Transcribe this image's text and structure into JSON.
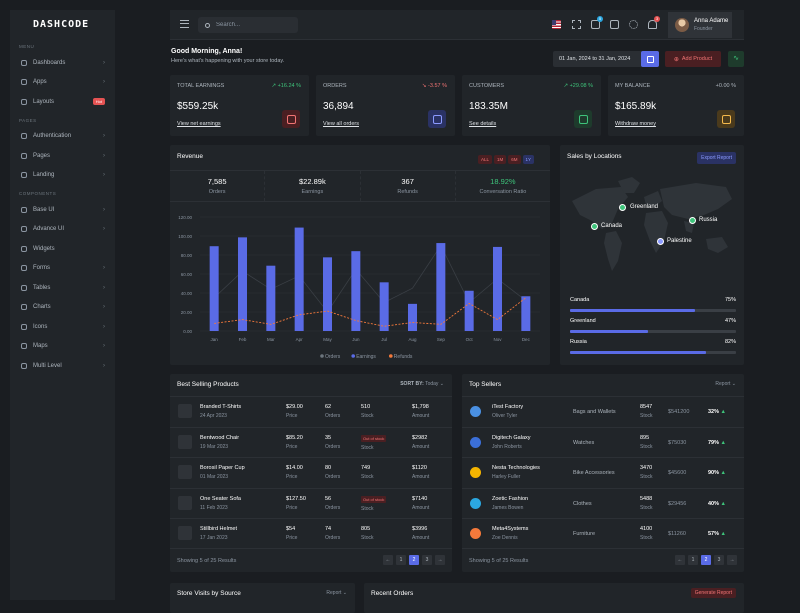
{
  "brand": "DASHCODE",
  "search": {
    "placeholder": "Search..."
  },
  "user": {
    "name": "Anna Adame",
    "role": "Founder"
  },
  "notif_counts": {
    "cart": "5",
    "bell": "3"
  },
  "sidebar": {
    "sections": [
      "MENU",
      "PAGES",
      "COMPONENTS"
    ],
    "items": [
      {
        "label": "Dashboards",
        "icon": "dashboard-icon"
      },
      {
        "label": "Apps",
        "icon": "apps-icon"
      },
      {
        "label": "Layouts",
        "icon": "layouts-icon",
        "badge": "Hot"
      },
      {
        "label": "Authentication",
        "icon": "user-circle-icon"
      },
      {
        "label": "Pages",
        "icon": "pages-icon"
      },
      {
        "label": "Landing",
        "icon": "rocket-icon"
      },
      {
        "label": "Base UI",
        "icon": "cube-icon"
      },
      {
        "label": "Advance UI",
        "icon": "layers-icon"
      },
      {
        "label": "Widgets",
        "icon": "widgets-icon"
      },
      {
        "label": "Forms",
        "icon": "forms-icon"
      },
      {
        "label": "Tables",
        "icon": "table-icon"
      },
      {
        "label": "Charts",
        "icon": "chart-icon"
      },
      {
        "label": "Icons",
        "icon": "compass-icon"
      },
      {
        "label": "Maps",
        "icon": "map-icon"
      },
      {
        "label": "Multi Level",
        "icon": "share-icon"
      }
    ]
  },
  "greeting": {
    "title": "Good Morning, Anna!",
    "subtitle": "Here's what's happening with your store today."
  },
  "date_range": "01 Jan, 2024 to 31 Jan, 2024",
  "add_product": "Add Product",
  "kpis": [
    {
      "label": "TOTAL EARNINGS",
      "change": "+16.24 %",
      "dir": "up",
      "value": "$559.25k",
      "link": "View net earnings",
      "color": "#f27474",
      "bg": "#4a1f22",
      "icon": "dollar-icon"
    },
    {
      "label": "ORDERS",
      "change": "-3.57 %",
      "dir": "down",
      "value": "36,894",
      "link": "View all orders",
      "color": "#8b9aff",
      "bg": "#2a3264",
      "icon": "bag-icon"
    },
    {
      "label": "CUSTOMERS",
      "change": "+29.08 %",
      "dir": "up",
      "value": "183.35M",
      "link": "See details",
      "color": "#3ec47b",
      "bg": "#1e3b2c",
      "icon": "user-icon"
    },
    {
      "label": "MY BALANCE",
      "change": "+0.00 %",
      "dir": "flat",
      "value": "$165.89k",
      "link": "Withdraw money",
      "color": "#f4b94c",
      "bg": "#4a3a1c",
      "icon": "wallet-icon"
    }
  ],
  "revenue": {
    "title": "Revenue",
    "filters": [
      "ALL",
      "1M",
      "6M",
      "1Y"
    ],
    "active_filter": "1Y",
    "stats": [
      {
        "value": "7,585",
        "label": "Orders"
      },
      {
        "value": "$22.89k",
        "label": "Earnings"
      },
      {
        "value": "367",
        "label": "Refunds"
      },
      {
        "value": "18.92%",
        "label": "Conversation Ratio",
        "accent": "#3ec47b"
      }
    ]
  },
  "chart_data": {
    "type": "bar",
    "categories": [
      "Jan",
      "Feb",
      "Mar",
      "Apr",
      "May",
      "Jun",
      "Jul",
      "Aug",
      "Sep",
      "Oct",
      "Nov",
      "Dec"
    ],
    "series": [
      {
        "name": "Orders",
        "type": "line",
        "values": [
          35,
          63,
          44,
          58,
          20,
          65,
          30,
          45,
          90,
          30,
          55,
          32
        ]
      },
      {
        "name": "Earnings",
        "type": "bar",
        "color": "#5a6be6",
        "values": [
          89.25,
          98.58,
          68.74,
          108.87,
          77.54,
          84.03,
          51.24,
          28.57,
          92.57,
          42.36,
          88.51,
          36.57
        ]
      },
      {
        "name": "Refunds",
        "type": "line",
        "color": "#f4793b",
        "values": [
          8,
          12,
          7,
          17,
          21,
          11,
          5,
          9,
          7,
          29,
          12,
          35
        ]
      }
    ],
    "yticks": [
      "0.00",
      "20.00",
      "40.00",
      "60.00",
      "80.00",
      "100.00",
      "120.00"
    ],
    "ylim": [
      0,
      120
    ],
    "legend": [
      "Orders",
      "Earnings",
      "Refunds"
    ]
  },
  "locations": {
    "title": "Sales by Locations",
    "button": "Export Report",
    "markers": [
      "Greenland",
      "Canada",
      "Russia",
      "Palestine"
    ],
    "bars": [
      {
        "name": "Canada",
        "pct": "75%",
        "value": 75
      },
      {
        "name": "Greenland",
        "pct": "47%",
        "value": 47
      },
      {
        "name": "Russia",
        "pct": "82%",
        "value": 82
      }
    ]
  },
  "products": {
    "title": "Best Selling Products",
    "sort_label": "SORT BY:",
    "sort_value": "Today",
    "rows": [
      {
        "name": "Branded T-Shirts",
        "date": "24 Apr 2023",
        "price": "$29.00",
        "orders": "62",
        "stock": "510",
        "amount": "$1,798",
        "oos": false
      },
      {
        "name": "Bentwood Chair",
        "date": "19 Mar 2023",
        "price": "$85.20",
        "orders": "35",
        "stock": "Out of stock",
        "amount": "$2982",
        "oos": true
      },
      {
        "name": "Borosil Paper Cup",
        "date": "01 Mar 2023",
        "price": "$14.00",
        "orders": "80",
        "stock": "749",
        "amount": "$1120",
        "oos": false
      },
      {
        "name": "One Seater Sofa",
        "date": "11 Feb 2023",
        "price": "$127.50",
        "orders": "56",
        "stock": "Out of stock",
        "amount": "$7140",
        "oos": true
      },
      {
        "name": "Stillbird Helmet",
        "date": "17 Jan 2023",
        "price": "$54",
        "orders": "74",
        "stock": "805",
        "amount": "$3996",
        "oos": false
      }
    ],
    "labels": {
      "price": "Price",
      "orders": "Orders",
      "stock": "Stock",
      "amount": "Amount"
    },
    "footer": "Showing 5 of 25 Results",
    "pages": [
      "←",
      "1",
      "2",
      "3",
      "→"
    ]
  },
  "sellers": {
    "title": "Top Sellers",
    "option": "Report",
    "rows": [
      {
        "name": "iTest Factory",
        "person": "Oliver Tyler",
        "category": "Bags and Wallets",
        "stock": "8547",
        "amount": "$541200",
        "pct": "32%",
        "color": "#4a90e2"
      },
      {
        "name": "Digitech Galaxy",
        "person": "John Roberts",
        "category": "Watches",
        "stock": "895",
        "amount": "$75030",
        "pct": "79%",
        "color": "#3b6fd8"
      },
      {
        "name": "Nesta Technologies",
        "person": "Harley Fuller",
        "category": "Bike Accessories",
        "stock": "3470",
        "amount": "$45600",
        "pct": "90%",
        "color": "#f4b400"
      },
      {
        "name": "Zoetic Fashion",
        "person": "James Bowen",
        "category": "Clothes",
        "stock": "5488",
        "amount": "$29456",
        "pct": "40%",
        "color": "#2ba7e0"
      },
      {
        "name": "Meta4Systems",
        "person": "Zoe Dennis",
        "category": "Furniture",
        "stock": "4100",
        "amount": "$11260",
        "pct": "57%",
        "color": "#f4793b"
      }
    ],
    "stock_label": "Stock",
    "footer": "Showing 5 of 25 Results",
    "pages": [
      "←",
      "1",
      "2",
      "3",
      "→"
    ]
  },
  "visits": {
    "title": "Store Visits by Source",
    "option": "Report"
  },
  "recent": {
    "title": "Recent Orders",
    "button": "Generate Report"
  }
}
